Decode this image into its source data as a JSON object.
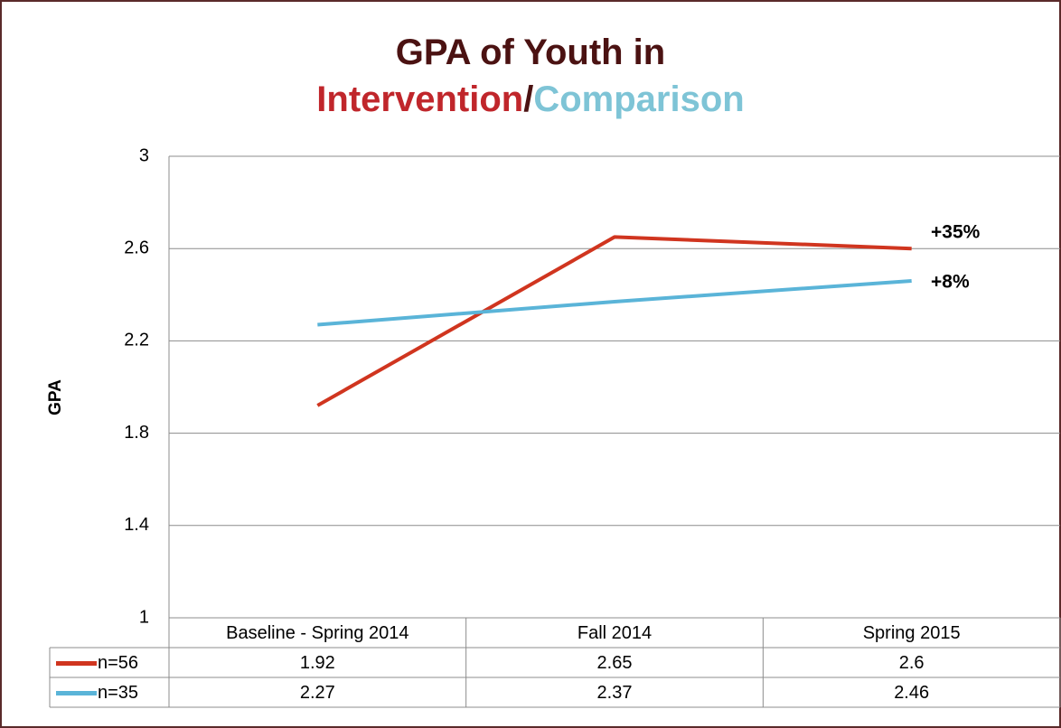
{
  "chart_data": {
    "type": "line",
    "title_lines": [
      [
        {
          "text": "GPA of Youth in",
          "color": "#4b1212"
        }
      ],
      [
        {
          "text": "Intervention",
          "color": "#c0262b"
        },
        {
          "text": "/",
          "color": "#4b1212"
        },
        {
          "text": "Comparison",
          "color": "#7ec4d6"
        }
      ]
    ],
    "y_label": "GPA",
    "categories": [
      "Baseline - Spring 2014",
      "Fall 2014",
      "Spring 2015"
    ],
    "series": [
      {
        "name": "n=56",
        "color": "#d0351f",
        "values": [
          1.92,
          2.65,
          2.6
        ]
      },
      {
        "name": "n=35",
        "color": "#5ab4d8",
        "values": [
          2.27,
          2.37,
          2.46
        ]
      }
    ],
    "annotations": [
      {
        "text": "+35%",
        "color": "#c0262b"
      },
      {
        "text": "+8%",
        "color": "#3aa0b2"
      }
    ],
    "ylim": [
      1,
      3
    ],
    "yticks": [
      1,
      1.4,
      1.8,
      2.2,
      2.6,
      3
    ],
    "grid": true,
    "legend": "table"
  }
}
